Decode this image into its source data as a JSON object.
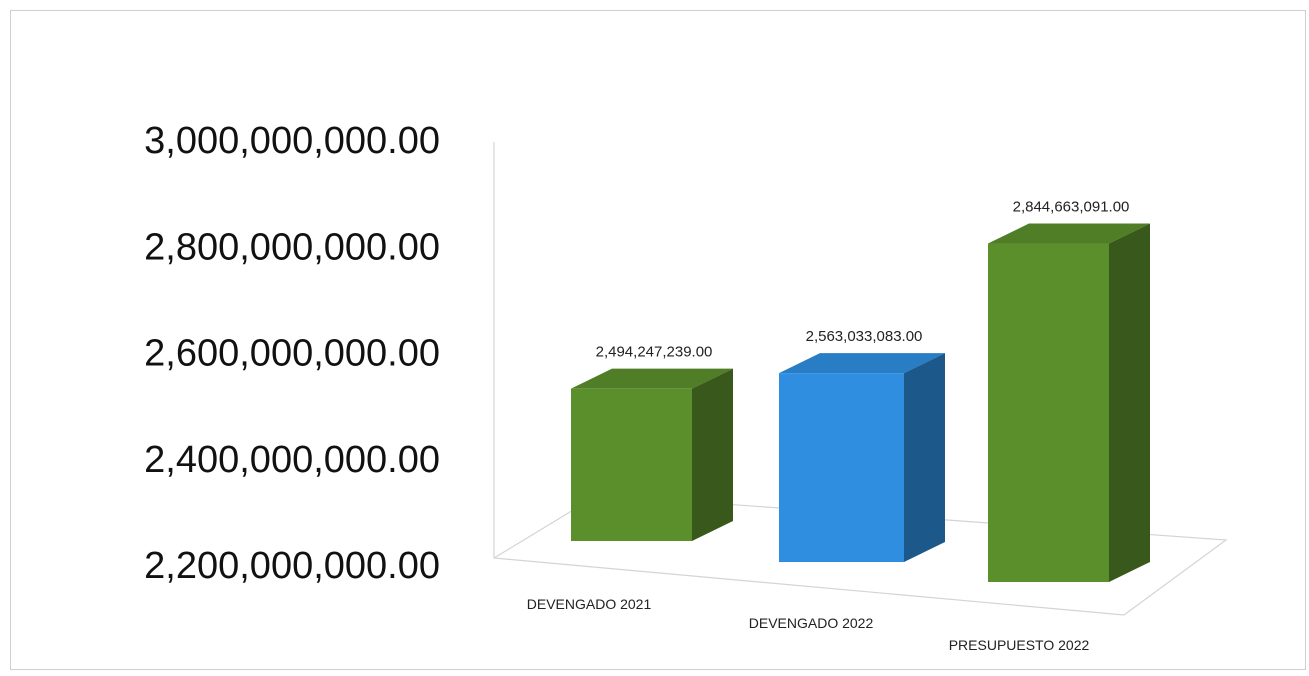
{
  "chart_data": {
    "type": "bar",
    "categories": [
      "DEVENGADO 2021",
      "DEVENGADO 2022",
      "PRESUPUESTO 2022"
    ],
    "values": [
      2494247239.0,
      2563033083.0,
      2844663091.0
    ],
    "data_labels": [
      "2,494,247,239.00",
      "2,563,033,083.00",
      "2,844,663,091.00"
    ],
    "ylim": [
      2200000000,
      3000000000
    ],
    "yticks": [
      3000000000,
      2800000000,
      2600000000,
      2400000000,
      2200000000
    ],
    "ytick_labels": [
      "3,000,000,000.00",
      "2,800,000,000.00",
      "2,600,000,000.00",
      "2,400,000,000.00",
      "2,200,000,000.00"
    ],
    "title": "",
    "xlabel": "",
    "ylabel": "",
    "grid": false,
    "legend": "none",
    "style": "3d-column",
    "colors": [
      "#5b8f2c",
      "#2f8ee0",
      "#5b8f2c"
    ]
  }
}
